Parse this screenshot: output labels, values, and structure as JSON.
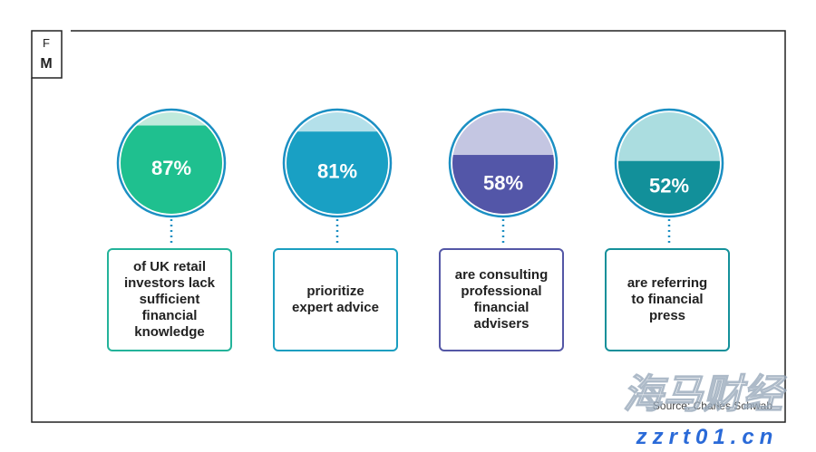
{
  "logo": {
    "top": "F",
    "bottom": "M"
  },
  "chart_data": {
    "type": "fill-circle",
    "categories": [
      "of UK retail investors lack sufficient financial knowledge",
      "prioritize expert advice",
      "are consulting professional financial advisers",
      "are referring to financial press"
    ],
    "values": [
      87,
      81,
      58,
      52
    ],
    "value_labels": [
      "87%",
      "81%",
      "58%",
      "52%"
    ],
    "colors": [
      "#1fc08f",
      "#19a0c4",
      "#5356a8",
      "#12909a"
    ],
    "light_colors": [
      "#c0eadc",
      "#b4e0ea",
      "#c4c6e2",
      "#abdde0"
    ],
    "border_colors": [
      "#23b39a",
      "#1a9ec0",
      "#5457a6",
      "#14909a"
    ],
    "ring_color": "#1b8fc3",
    "source": "Source: Charles Schwab"
  },
  "watermark": {
    "text": "海马财经",
    "url": "zzrt01.cn"
  }
}
